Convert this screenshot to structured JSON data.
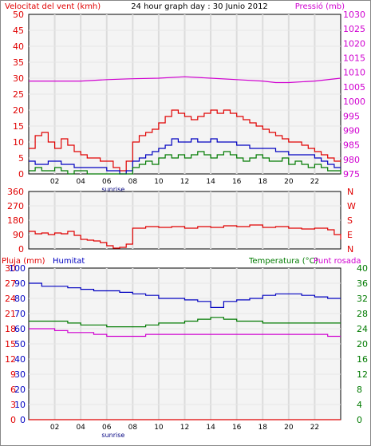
{
  "header": {
    "left_title": "Velocitat del vent (kmh)",
    "center_title": "24 hour graph day : 30 Junio 2012",
    "right_title": "Pressió (mb)"
  },
  "x_axis": {
    "tick_labels": [
      "02",
      "04",
      "06",
      "08",
      "10",
      "12",
      "14",
      "16",
      "18",
      "20",
      "22"
    ],
    "sunrise_label": "sunrise"
  },
  "colors": {
    "red": "#e00000",
    "green": "#007a00",
    "blue": "#0000c0",
    "magenta": "#d000d0",
    "grid": "#dcdcdc",
    "background": "#f4f4f4"
  },
  "chart_data": [
    {
      "type": "line",
      "name": "wind-and-pressure",
      "x_range": [
        0,
        24
      ],
      "left_axis": {
        "ylim": [
          0,
          50
        ],
        "ticks": [
          "0",
          "5",
          "10",
          "15",
          "20",
          "25",
          "30",
          "35",
          "40",
          "45",
          "50"
        ]
      },
      "right_axis": {
        "ylim": [
          975,
          1030
        ],
        "ticks": [
          "975",
          "980",
          "985",
          "990",
          "995",
          "1000",
          "1005",
          "1010",
          "1015",
          "1020",
          "1025",
          "1030"
        ]
      },
      "series": [
        {
          "name": "",
          "role": "gust",
          "color": "#e00000",
          "axis": "left",
          "x": [
            0,
            0.5,
            1,
            1.5,
            2,
            2.5,
            3,
            3.5,
            4,
            4.5,
            5,
            5.5,
            6,
            6.5,
            7,
            7.5,
            8,
            8.5,
            9,
            9.5,
            10,
            10.5,
            11,
            11.5,
            12,
            12.5,
            13,
            13.5,
            14,
            14.5,
            15,
            15.5,
            16,
            16.5,
            17,
            17.5,
            18,
            18.5,
            19,
            19.5,
            20,
            20.5,
            21,
            21.5,
            22,
            22.5,
            23,
            23.5,
            24
          ],
          "values": [
            8,
            12,
            13,
            10,
            8,
            11,
            9,
            7,
            6,
            5,
            5,
            4,
            4,
            2,
            1,
            4,
            10,
            12,
            13,
            14,
            16,
            18,
            20,
            19,
            18,
            17,
            18,
            19,
            20,
            19,
            20,
            19,
            18,
            17,
            16,
            15,
            14,
            13,
            12,
            11,
            10,
            10,
            9,
            8,
            7,
            6,
            5,
            4,
            4
          ]
        },
        {
          "name": "",
          "role": "average",
          "color": "#0000c0",
          "axis": "left",
          "x": [
            0,
            0.5,
            1,
            1.5,
            2,
            2.5,
            3,
            3.5,
            4,
            4.5,
            5,
            5.5,
            6,
            6.5,
            7,
            7.5,
            8,
            8.5,
            9,
            9.5,
            10,
            10.5,
            11,
            11.5,
            12,
            12.5,
            13,
            13.5,
            14,
            14.5,
            15,
            15.5,
            16,
            16.5,
            17,
            17.5,
            18,
            18.5,
            19,
            19.5,
            20,
            20.5,
            21,
            21.5,
            22,
            22.5,
            23,
            23.5,
            24
          ],
          "values": [
            4,
            3,
            3,
            4,
            4,
            3,
            3,
            2,
            2,
            2,
            2,
            2,
            1,
            1,
            0,
            1,
            4,
            5,
            6,
            7,
            8,
            9,
            11,
            10,
            10,
            11,
            10,
            10,
            11,
            10,
            10,
            10,
            9,
            9,
            8,
            8,
            8,
            8,
            7,
            7,
            6,
            6,
            6,
            6,
            5,
            4,
            3,
            2,
            2
          ]
        },
        {
          "name": "",
          "role": "minimum",
          "color": "#007a00",
          "axis": "left",
          "x": [
            0,
            0.5,
            1,
            1.5,
            2,
            2.5,
            3,
            3.5,
            4,
            4.5,
            5,
            5.5,
            6,
            6.5,
            7,
            7.5,
            8,
            8.5,
            9,
            9.5,
            10,
            10.5,
            11,
            11.5,
            12,
            12.5,
            13,
            13.5,
            14,
            14.5,
            15,
            15.5,
            16,
            16.5,
            17,
            17.5,
            18,
            18.5,
            19,
            19.5,
            20,
            20.5,
            21,
            21.5,
            22,
            22.5,
            23,
            23.5,
            24
          ],
          "values": [
            1,
            2,
            1,
            1,
            2,
            1,
            0,
            1,
            1,
            0,
            0,
            0,
            0,
            0,
            0,
            0,
            2,
            3,
            4,
            3,
            5,
            6,
            5,
            6,
            5,
            6,
            7,
            6,
            5,
            6,
            7,
            6,
            5,
            4,
            5,
            6,
            5,
            4,
            4,
            5,
            3,
            4,
            3,
            2,
            3,
            2,
            1,
            1,
            0
          ]
        },
        {
          "name": "",
          "role": "pressure",
          "color": "#d000d0",
          "axis": "right",
          "x": [
            0,
            2,
            4,
            6,
            8,
            10,
            12,
            14,
            16,
            18,
            19,
            20,
            22,
            24
          ],
          "values": [
            1007,
            1007,
            1007,
            1007.5,
            1007.8,
            1008,
            1008.5,
            1008,
            1007.5,
            1007,
            1006.5,
            1006.5,
            1007,
            1008
          ]
        }
      ]
    },
    {
      "type": "line",
      "name": "wind-direction",
      "x_range": [
        0,
        24
      ],
      "ylim": [
        0,
        360
      ],
      "left_ticks": [
        "360",
        "270",
        "180",
        "90",
        "0"
      ],
      "right_labels": [
        "N",
        "W",
        "S",
        "E",
        "N"
      ],
      "series": [
        {
          "name": "",
          "color": "#e00000",
          "x": [
            0,
            0.5,
            1,
            1.5,
            2,
            2.5,
            3,
            3.5,
            4,
            4.5,
            5,
            5.5,
            6,
            6.5,
            7,
            7.5,
            8,
            9,
            10,
            11,
            12,
            13,
            14,
            15,
            16,
            17,
            18,
            19,
            20,
            21,
            22,
            23,
            23.5,
            24
          ],
          "values": [
            110,
            95,
            100,
            90,
            100,
            95,
            110,
            85,
            60,
            55,
            50,
            40,
            20,
            5,
            10,
            30,
            130,
            140,
            135,
            140,
            130,
            140,
            135,
            145,
            140,
            150,
            135,
            140,
            130,
            125,
            130,
            120,
            90,
            60
          ]
        }
      ]
    },
    {
      "type": "line",
      "name": "humidity-temperature-rain",
      "x_range": [
        0,
        24
      ],
      "left_axis_1": {
        "label": "Pluja (mm)",
        "ylim": [
          0,
          30
        ],
        "ticks": [
          "0",
          "3",
          "6",
          "9",
          "12",
          "15",
          "18",
          "21",
          "24",
          "27",
          "30"
        ]
      },
      "left_axis_2": {
        "label": "Humitat",
        "ylim": [
          0,
          100
        ],
        "ticks": [
          "0",
          "10",
          "20",
          "30",
          "40",
          "50",
          "60",
          "70",
          "80",
          "90",
          "100"
        ]
      },
      "right_axis": {
        "label_1": "Temperatura (°C)",
        "label_2": "Punt rosada",
        "ylim": [
          0,
          40
        ],
        "ticks": [
          "0",
          "4",
          "8",
          "12",
          "16",
          "20",
          "24",
          "28",
          "32",
          "36",
          "40"
        ]
      },
      "series": [
        {
          "name": "Humitat",
          "color": "#0000c0",
          "axis": "left2",
          "x": [
            0,
            1,
            2,
            3,
            4,
            5,
            6,
            7,
            8,
            9,
            10,
            11,
            12,
            13,
            14,
            15,
            16,
            17,
            18,
            19,
            20,
            21,
            22,
            23,
            24
          ],
          "values": [
            90,
            88,
            88,
            87,
            86,
            85,
            85,
            84,
            83,
            82,
            80,
            80,
            79,
            78,
            74,
            78,
            79,
            80,
            82,
            83,
            83,
            82,
            81,
            80,
            80
          ]
        },
        {
          "name": "Temperatura (°C)",
          "color": "#007a00",
          "axis": "right",
          "x": [
            0,
            1,
            2,
            3,
            4,
            5,
            6,
            7,
            8,
            9,
            10,
            11,
            12,
            13,
            14,
            15,
            16,
            17,
            18,
            19,
            20,
            21,
            22,
            23,
            24
          ],
          "values": [
            26,
            26,
            26,
            25.5,
            25,
            25,
            24.5,
            24.5,
            24.5,
            25,
            25.5,
            25.5,
            26,
            26.5,
            27,
            26.5,
            26,
            26,
            25.5,
            25.5,
            25.5,
            25.5,
            25.5,
            25.5,
            25.5
          ]
        },
        {
          "name": "Punt rosada",
          "color": "#d000d0",
          "axis": "right",
          "x": [
            0,
            1,
            2,
            3,
            4,
            5,
            6,
            7,
            8,
            9,
            10,
            11,
            12,
            13,
            14,
            15,
            16,
            17,
            18,
            19,
            20,
            21,
            22,
            23,
            24
          ],
          "values": [
            24,
            24,
            23.5,
            23,
            23,
            22.5,
            22,
            22,
            22,
            22.5,
            22.5,
            22.5,
            22.5,
            22.5,
            22.5,
            22.5,
            22.5,
            22.5,
            22.5,
            22.5,
            22.5,
            22.5,
            22.5,
            22,
            22
          ]
        },
        {
          "name": "Pluja (mm)",
          "color": "#e00000",
          "axis": "left1",
          "x": [
            0,
            24
          ],
          "values": [
            0,
            0
          ]
        }
      ]
    }
  ]
}
